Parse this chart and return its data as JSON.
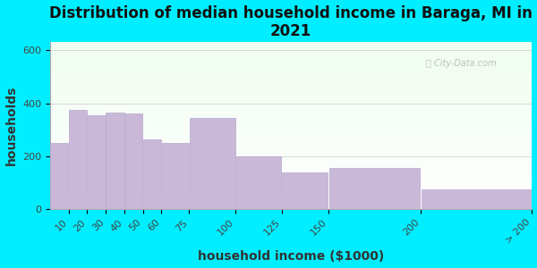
{
  "title": "Distribution of median household income in Baraga, MI in\n2021",
  "xlabel": "household income ($1000)",
  "ylabel": "households",
  "bin_edges": [
    0,
    10,
    20,
    30,
    40,
    50,
    60,
    75,
    100,
    125,
    150,
    200,
    260
  ],
  "tick_positions": [
    10,
    20,
    30,
    40,
    50,
    60,
    75,
    100,
    125,
    150,
    200,
    260
  ],
  "tick_labels": [
    "10",
    "20",
    "30",
    "40",
    "50",
    "60",
    "75",
    "100",
    "125",
    "150",
    "200",
    "> 200"
  ],
  "bar_heights": [
    250,
    375,
    355,
    365,
    360,
    265,
    250,
    345,
    200,
    140,
    155,
    75
  ],
  "bar_color": "#c9b8d8",
  "bar_edgecolor": "#b8a8cc",
  "outer_bg": "#00eeff",
  "plot_bg_top": "#eefff0",
  "plot_bg_bottom": "#ffffff",
  "yticks": [
    0,
    200,
    400,
    600
  ],
  "ylim": [
    0,
    630
  ],
  "xlim": [
    0,
    260
  ],
  "title_fontsize": 12,
  "axis_label_fontsize": 10,
  "tick_fontsize": 8,
  "watermark": "ⓘ City-Data.com"
}
